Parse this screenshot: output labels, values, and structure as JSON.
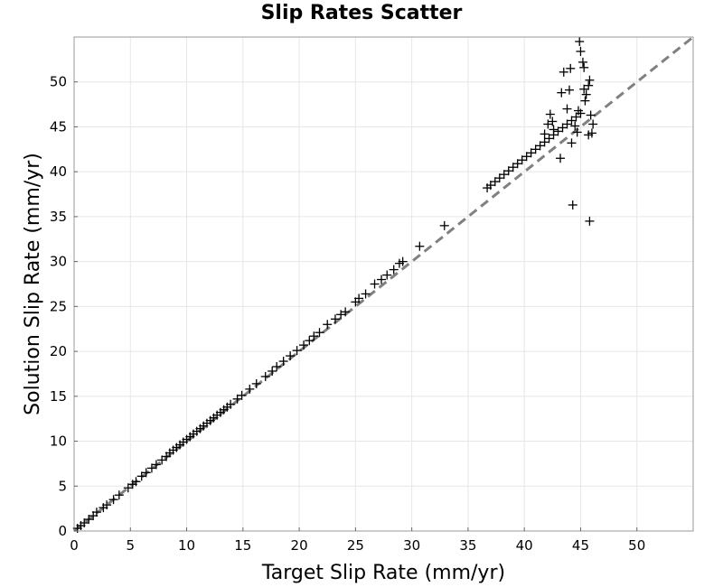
{
  "chart_data": {
    "type": "scatter",
    "title": "Slip Rates Scatter",
    "xlabel": "Target Slip Rate (mm/yr)",
    "ylabel": "Solution Slip Rate (mm/yr)",
    "xlim": [
      0,
      55
    ],
    "ylim": [
      0,
      55
    ],
    "xticks": [
      0,
      5,
      10,
      15,
      20,
      25,
      30,
      35,
      40,
      45,
      50
    ],
    "yticks": [
      0,
      5,
      10,
      15,
      20,
      25,
      30,
      35,
      40,
      45,
      50
    ],
    "grid": true,
    "marker": "+",
    "marker_color": "#000000",
    "reference_line": {
      "style": "dashed",
      "color": "#808080",
      "points": [
        [
          0,
          0
        ],
        [
          55,
          55
        ]
      ]
    },
    "series": [
      {
        "points": [
          [
            0.3,
            0.3
          ],
          [
            0.6,
            0.6
          ],
          [
            0.9,
            0.9
          ],
          [
            1.3,
            1.3
          ],
          [
            1.7,
            1.7
          ],
          [
            2.0,
            2.1
          ],
          [
            2.6,
            2.6
          ],
          [
            2.9,
            2.9
          ],
          [
            3.5,
            3.5
          ],
          [
            4.0,
            4.0
          ],
          [
            4.8,
            4.8
          ],
          [
            5.2,
            5.2
          ],
          [
            5.5,
            5.5
          ],
          [
            6.0,
            6.1
          ],
          [
            6.4,
            6.5
          ],
          [
            6.9,
            7.0
          ],
          [
            7.3,
            7.4
          ],
          [
            7.8,
            7.9
          ],
          [
            8.2,
            8.3
          ],
          [
            8.5,
            8.7
          ],
          [
            8.8,
            9.0
          ],
          [
            9.1,
            9.3
          ],
          [
            9.4,
            9.6
          ],
          [
            9.7,
            9.9
          ],
          [
            10.0,
            10.2
          ],
          [
            10.3,
            10.5
          ],
          [
            10.6,
            10.8
          ],
          [
            10.9,
            11.1
          ],
          [
            11.2,
            11.4
          ],
          [
            11.5,
            11.7
          ],
          [
            11.8,
            12.0
          ],
          [
            12.1,
            12.3
          ],
          [
            12.4,
            12.6
          ],
          [
            12.7,
            12.9
          ],
          [
            13.0,
            13.2
          ],
          [
            13.3,
            13.5
          ],
          [
            13.6,
            13.8
          ],
          [
            13.9,
            14.1
          ],
          [
            14.5,
            14.7
          ],
          [
            14.9,
            15.1
          ],
          [
            15.6,
            15.8
          ],
          [
            16.2,
            16.4
          ],
          [
            17.0,
            17.2
          ],
          [
            17.6,
            17.8
          ],
          [
            18.0,
            18.3
          ],
          [
            18.6,
            18.9
          ],
          [
            19.2,
            19.5
          ],
          [
            19.8,
            20.1
          ],
          [
            20.4,
            20.7
          ],
          [
            20.9,
            21.2
          ],
          [
            21.3,
            21.7
          ],
          [
            21.8,
            22.1
          ],
          [
            22.5,
            23.0
          ],
          [
            23.2,
            23.6
          ],
          [
            23.7,
            24.1
          ],
          [
            24.1,
            24.4
          ],
          [
            25.0,
            25.5
          ],
          [
            25.3,
            25.9
          ],
          [
            25.9,
            26.4
          ],
          [
            26.7,
            27.5
          ],
          [
            27.3,
            28.0
          ],
          [
            27.8,
            28.5
          ],
          [
            28.4,
            29.1
          ],
          [
            28.9,
            29.8
          ],
          [
            29.2,
            30.0
          ],
          [
            30.7,
            31.7
          ],
          [
            32.9,
            34.0
          ],
          [
            36.7,
            38.2
          ],
          [
            37.0,
            38.5
          ],
          [
            37.4,
            38.9
          ],
          [
            37.8,
            39.3
          ],
          [
            38.2,
            39.7
          ],
          [
            38.6,
            40.1
          ],
          [
            39.0,
            40.5
          ],
          [
            39.4,
            40.9
          ],
          [
            39.8,
            41.3
          ],
          [
            40.2,
            41.7
          ],
          [
            40.6,
            42.1
          ],
          [
            41.0,
            42.5
          ],
          [
            41.4,
            42.9
          ],
          [
            41.8,
            43.3
          ],
          [
            42.2,
            43.7
          ],
          [
            42.6,
            44.1
          ],
          [
            43.0,
            44.5
          ],
          [
            43.4,
            44.9
          ],
          [
            43.8,
            45.3
          ],
          [
            44.2,
            45.7
          ],
          [
            44.6,
            46.1
          ],
          [
            45.0,
            46.5
          ],
          [
            42.1,
            45.3
          ],
          [
            42.3,
            46.4
          ],
          [
            42.6,
            44.7
          ],
          [
            43.2,
            41.5
          ],
          [
            43.5,
            51.1
          ],
          [
            44.1,
            51.5
          ],
          [
            43.3,
            48.8
          ],
          [
            43.8,
            47.0
          ],
          [
            44.0,
            49.1
          ],
          [
            44.2,
            43.2
          ],
          [
            44.3,
            36.3
          ],
          [
            44.7,
            44.4
          ],
          [
            44.9,
            54.5
          ],
          [
            45.0,
            53.4
          ],
          [
            45.2,
            52.2
          ],
          [
            45.3,
            51.6
          ],
          [
            45.3,
            49.2
          ],
          [
            45.4,
            47.9
          ],
          [
            45.5,
            48.6
          ],
          [
            45.7,
            49.6
          ],
          [
            45.8,
            50.2
          ],
          [
            45.9,
            46.3
          ],
          [
            45.7,
            44.1
          ],
          [
            46.0,
            44.3
          ],
          [
            46.1,
            45.3
          ],
          [
            45.8,
            34.5
          ],
          [
            44.5,
            45.1
          ],
          [
            44.8,
            46.8
          ],
          [
            41.8,
            44.2
          ],
          [
            42.5,
            45.6
          ]
        ]
      }
    ]
  }
}
